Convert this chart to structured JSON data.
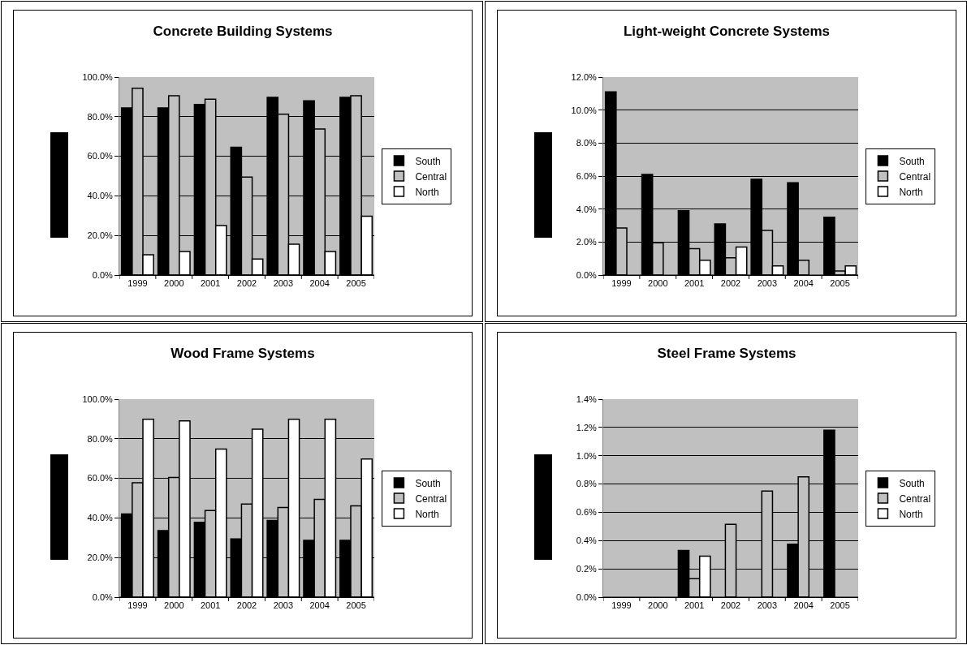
{
  "chart_data": [
    {
      "type": "bar",
      "title": "Concrete Building Systems",
      "categories": [
        "1999",
        "2000",
        "2001",
        "2002",
        "2003",
        "2004",
        "2005"
      ],
      "series": [
        {
          "name": "South",
          "color": "#000000",
          "values": [
            84.4,
            84.4,
            86.2,
            64.5,
            89.8,
            88,
            89.8
          ]
        },
        {
          "name": "Central",
          "color": "#c0c0c0",
          "values": [
            94.4,
            90.6,
            88.8,
            49.5,
            81.2,
            73.8,
            90.6
          ]
        },
        {
          "name": "North",
          "color": "#ffffff",
          "values": [
            10.2,
            11.9,
            25,
            8.1,
            15.6,
            11.9,
            29.7
          ]
        }
      ],
      "ylim": [
        0,
        100
      ],
      "yticks": [
        {
          "value": 0,
          "label": "0.0%"
        },
        {
          "value": 20,
          "label": "20.0%"
        },
        {
          "value": 40,
          "label": "40.0%"
        },
        {
          "value": 60,
          "label": "60.0%"
        },
        {
          "value": 80,
          "label": "80.0%"
        },
        {
          "value": 100,
          "label": "100.0%"
        }
      ],
      "grid": "y",
      "legend": "right"
    },
    {
      "type": "bar",
      "title": "Light-weight Concrete Systems",
      "categories": [
        "1999",
        "2000",
        "2001",
        "2002",
        "2003",
        "2004",
        "2005"
      ],
      "series": [
        {
          "name": "South",
          "color": "#000000",
          "values": [
            11.1,
            6.1,
            3.9,
            3.1,
            5.8,
            5.6,
            3.5
          ]
        },
        {
          "name": "Central",
          "color": "#c0c0c0",
          "values": [
            2.85,
            1.95,
            1.6,
            1.05,
            2.7,
            0.9,
            0.25
          ]
        },
        {
          "name": "North",
          "color": "#ffffff",
          "values": [
            null,
            null,
            0.9,
            1.7,
            0.55,
            null,
            0.55
          ]
        }
      ],
      "ylim": [
        0,
        12
      ],
      "yticks": [
        {
          "value": 0,
          "label": "0.0%"
        },
        {
          "value": 2,
          "label": "2.0%"
        },
        {
          "value": 4,
          "label": "4.0%"
        },
        {
          "value": 6,
          "label": "6.0%"
        },
        {
          "value": 8,
          "label": "8.0%"
        },
        {
          "value": 10,
          "label": "10.0%"
        },
        {
          "value": 12,
          "label": "12.0%"
        }
      ],
      "grid": "y",
      "legend": "right"
    },
    {
      "type": "bar",
      "title": "Wood Frame Systems",
      "categories": [
        "1999",
        "2000",
        "2001",
        "2002",
        "2003",
        "2004",
        "2005"
      ],
      "series": [
        {
          "name": "South",
          "color": "#000000",
          "values": [
            42,
            33.6,
            37.8,
            29.4,
            38.7,
            28.7,
            28.7
          ]
        },
        {
          "name": "Central",
          "color": "#c0c0c0",
          "values": [
            57.8,
            60.5,
            43.7,
            47,
            45.3,
            49.4,
            46.1
          ]
        },
        {
          "name": "North",
          "color": "#ffffff",
          "values": [
            89.9,
            89,
            74.8,
            84.8,
            89.9,
            89.9,
            69.8
          ]
        }
      ],
      "ylim": [
        0,
        100
      ],
      "yticks": [
        {
          "value": 0,
          "label": "0.0%"
        },
        {
          "value": 20,
          "label": "20.0%"
        },
        {
          "value": 40,
          "label": "40.0%"
        },
        {
          "value": 60,
          "label": "60.0%"
        },
        {
          "value": 80,
          "label": "80.0%"
        },
        {
          "value": 100,
          "label": "100.0%"
        }
      ],
      "grid": "y",
      "legend": "right"
    },
    {
      "type": "bar",
      "title": "Steel Frame Systems",
      "categories": [
        "1999",
        "2000",
        "2001",
        "2002",
        "2003",
        "2004",
        "2005"
      ],
      "series": [
        {
          "name": "South",
          "color": "#000000",
          "values": [
            null,
            null,
            0.33,
            null,
            null,
            0.375,
            1.18
          ]
        },
        {
          "name": "Central",
          "color": "#c0c0c0",
          "values": [
            null,
            null,
            0.13,
            0.515,
            0.75,
            0.85,
            null
          ]
        },
        {
          "name": "North",
          "color": "#ffffff",
          "values": [
            null,
            null,
            0.29,
            null,
            null,
            null,
            null
          ]
        }
      ],
      "ylim": [
        0,
        1.4
      ],
      "yticks": [
        {
          "value": 0,
          "label": "0.0%"
        },
        {
          "value": 0.2,
          "label": "0.2%"
        },
        {
          "value": 0.4,
          "label": "0.4%"
        },
        {
          "value": 0.6,
          "label": "0.6%"
        },
        {
          "value": 0.8,
          "label": "0.8%"
        },
        {
          "value": 1,
          "label": "1.0%"
        },
        {
          "value": 1.2,
          "label": "1.2%"
        },
        {
          "value": 1.4,
          "label": "1.4%"
        }
      ],
      "grid": "y",
      "legend": "right"
    }
  ]
}
